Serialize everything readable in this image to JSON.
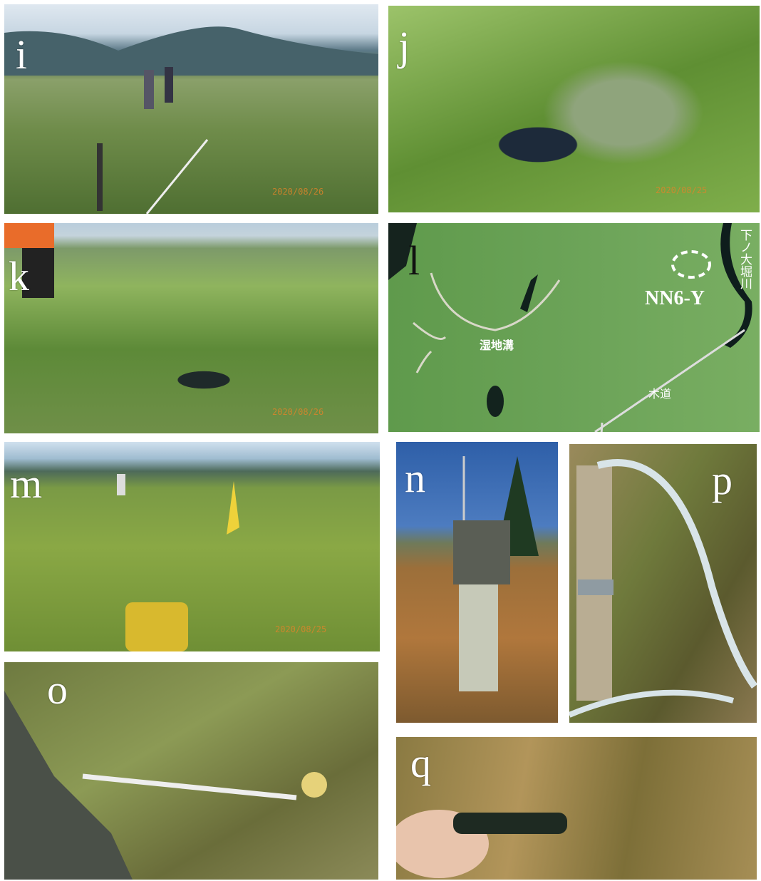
{
  "panels": [
    {
      "label": "i",
      "stamp": "2020/08/26"
    },
    {
      "label": "j",
      "stamp": "2020/08/25"
    },
    {
      "label": "k",
      "stamp": "2020/08/26"
    },
    {
      "label": "l",
      "map_labels": [
        "NN6-Y",
        "湿地溝",
        "木道",
        "下ノ大堀川"
      ]
    },
    {
      "label": "m",
      "stamp": "2020/08/25"
    },
    {
      "label": "n"
    },
    {
      "label": "p"
    },
    {
      "label": "o"
    },
    {
      "label": "q"
    }
  ]
}
